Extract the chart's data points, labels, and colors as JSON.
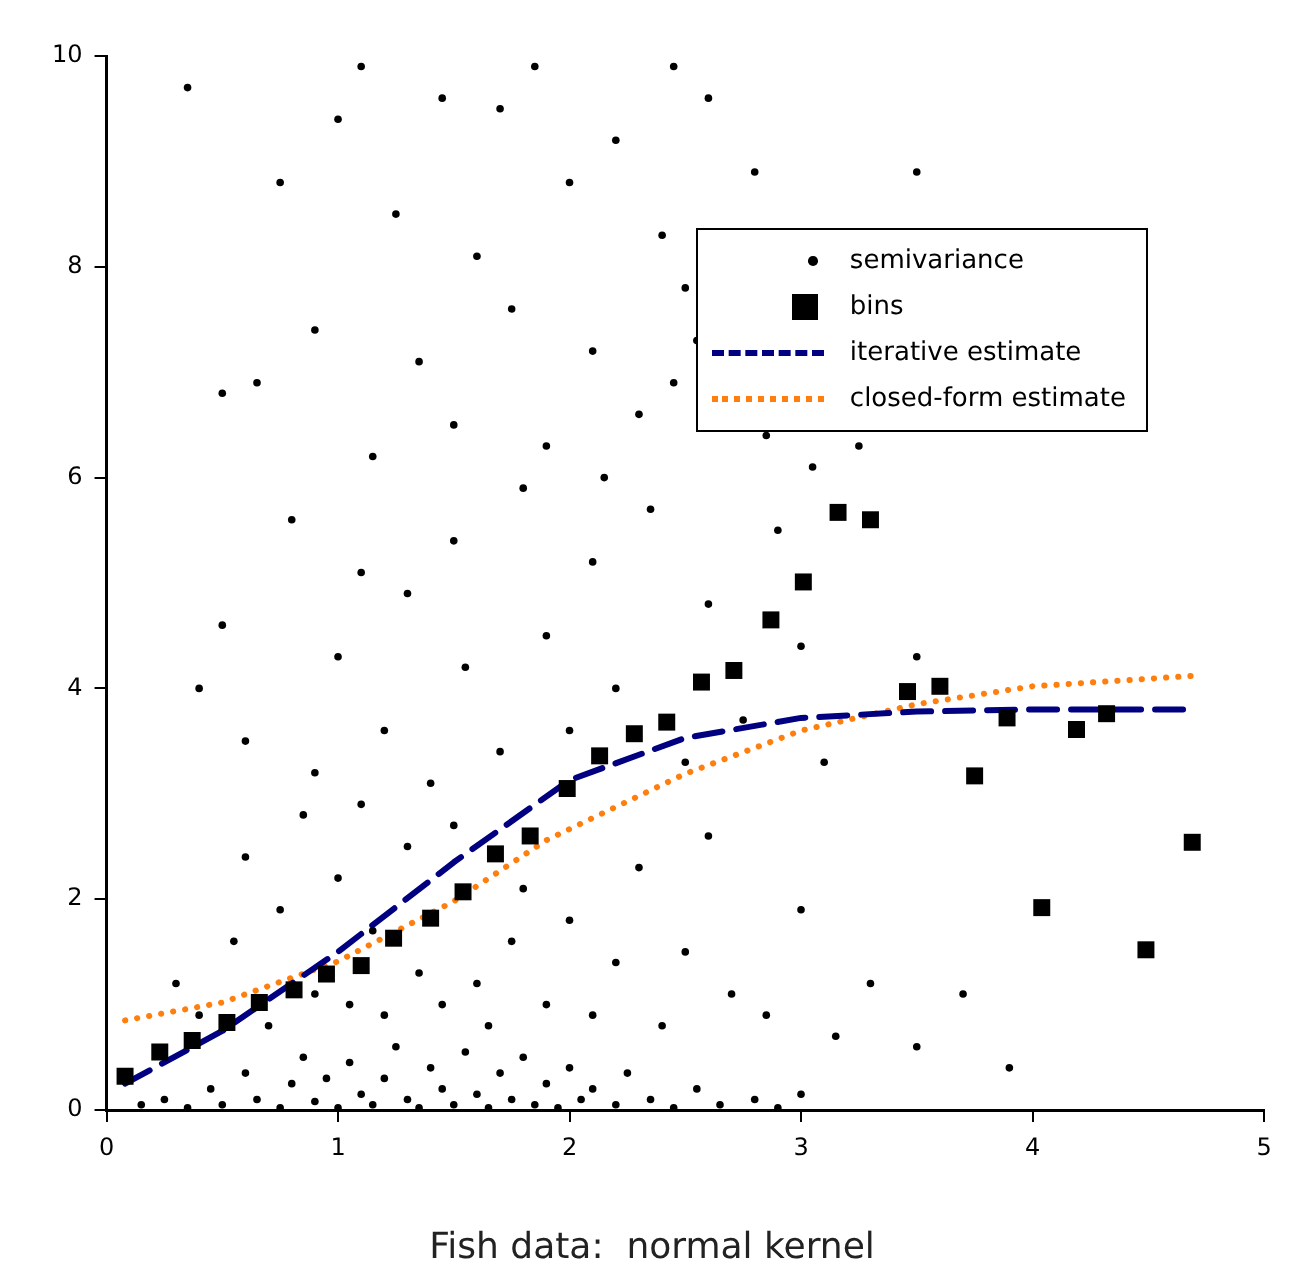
{
  "chart_data": {
    "type": "scatter",
    "title": "Fish data:  normal kernel",
    "xlim": [
      0,
      5
    ],
    "xticks": [
      0,
      1,
      2,
      3,
      4,
      5
    ],
    "ylim": [
      0,
      10
    ],
    "yticks": [
      0,
      2,
      4,
      6,
      8,
      10
    ],
    "grid": false,
    "legend": "top right",
    "series": [
      {
        "name": "semivariance",
        "type": "scatter",
        "marker": "circle",
        "color": "#000000",
        "x": [
          0.15,
          0.25,
          0.35,
          0.45,
          0.5,
          0.6,
          0.65,
          0.75,
          0.8,
          0.85,
          0.9,
          0.95,
          1.0,
          1.05,
          1.1,
          1.15,
          1.2,
          1.25,
          1.3,
          1.35,
          1.4,
          1.45,
          1.5,
          1.55,
          1.6,
          1.65,
          1.7,
          1.75,
          1.8,
          1.85,
          1.9,
          1.95,
          2.0,
          2.05,
          2.1,
          2.2,
          2.25,
          2.35,
          2.45,
          2.55,
          2.65,
          2.8,
          2.9,
          3.0,
          0.3,
          0.4,
          0.55,
          0.6,
          0.7,
          0.75,
          0.85,
          0.9,
          1.0,
          1.05,
          1.1,
          1.15,
          1.2,
          1.3,
          1.35,
          1.45,
          1.5,
          1.6,
          1.65,
          1.75,
          1.8,
          1.9,
          2.0,
          2.1,
          2.2,
          2.3,
          2.4,
          2.5,
          2.6,
          2.7,
          2.85,
          3.0,
          3.15,
          3.3,
          3.5,
          3.7,
          3.9,
          0.4,
          0.5,
          0.6,
          0.8,
          0.9,
          1.0,
          1.1,
          1.2,
          1.3,
          1.4,
          1.5,
          1.55,
          1.7,
          1.8,
          1.9,
          2.0,
          2.1,
          2.2,
          2.35,
          2.5,
          2.6,
          2.75,
          2.9,
          3.0,
          3.1,
          3.25,
          3.5,
          2.85,
          0.35,
          0.5,
          0.65,
          0.75,
          0.9,
          1.0,
          1.1,
          1.15,
          1.25,
          1.35,
          1.45,
          1.5,
          1.6,
          1.7,
          1.75,
          1.85,
          1.9,
          2.0,
          2.1,
          2.2,
          2.3,
          2.4,
          2.5,
          2.6,
          2.45,
          2.8,
          2.55,
          3.5,
          3.05,
          2.15,
          2.45
        ],
        "values": [
          0.05,
          0.1,
          0.02,
          0.2,
          0.05,
          0.35,
          0.1,
          0.02,
          0.25,
          0.5,
          0.08,
          0.3,
          0.02,
          0.45,
          0.15,
          0.05,
          0.3,
          0.6,
          0.1,
          0.02,
          0.4,
          0.2,
          0.05,
          0.55,
          0.15,
          0.02,
          0.35,
          0.1,
          0.5,
          0.05,
          0.25,
          0.02,
          0.4,
          0.1,
          0.2,
          0.05,
          0.35,
          0.1,
          0.02,
          0.2,
          0.05,
          0.1,
          0.02,
          0.15,
          1.2,
          0.9,
          1.6,
          2.4,
          0.8,
          1.9,
          2.8,
          1.1,
          2.2,
          1.0,
          2.9,
          1.7,
          0.9,
          2.5,
          1.3,
          1.0,
          2.7,
          1.2,
          0.8,
          1.6,
          2.1,
          1.0,
          1.8,
          0.9,
          1.4,
          2.3,
          0.8,
          1.5,
          2.6,
          1.1,
          0.9,
          1.9,
          0.7,
          1.2,
          0.6,
          1.1,
          0.4,
          4.0,
          4.6,
          3.5,
          5.6,
          3.2,
          4.3,
          5.1,
          3.6,
          4.9,
          3.1,
          5.4,
          4.2,
          3.4,
          5.9,
          4.5,
          3.6,
          5.2,
          4.0,
          5.7,
          3.3,
          4.8,
          3.7,
          5.5,
          4.4,
          3.3,
          6.3,
          4.3,
          6.4,
          9.7,
          6.8,
          6.9,
          8.8,
          7.4,
          9.4,
          9.9,
          6.2,
          8.5,
          7.1,
          9.6,
          6.5,
          8.1,
          9.5,
          7.6,
          9.9,
          6.3,
          8.8,
          7.2,
          9.2,
          6.6,
          8.3,
          7.8,
          9.6,
          6.9,
          8.9,
          7.3,
          8.9,
          6.1,
          6.0,
          9.9
        ]
      },
      {
        "name": "bins",
        "type": "scatter",
        "marker": "square",
        "color": "#000000",
        "x": [
          0.08,
          0.23,
          0.37,
          0.52,
          0.66,
          0.81,
          0.95,
          1.1,
          1.24,
          1.4,
          1.54,
          1.68,
          1.83,
          1.99,
          2.13,
          2.28,
          2.42,
          2.57,
          2.71,
          2.87,
          3.01,
          3.16,
          3.3,
          3.46,
          3.6,
          3.75,
          3.89,
          4.04,
          4.19,
          4.32,
          4.49,
          4.69
        ],
        "values": [
          0.32,
          0.55,
          0.66,
          0.83,
          1.02,
          1.14,
          1.29,
          1.37,
          1.63,
          1.82,
          2.07,
          2.43,
          2.6,
          3.05,
          3.36,
          3.57,
          3.68,
          4.06,
          4.17,
          4.65,
          5.01,
          5.67,
          5.6,
          3.97,
          4.02,
          3.17,
          3.72,
          1.92,
          3.61,
          3.76,
          1.52,
          2.54
        ]
      },
      {
        "name": "iterative estimate",
        "type": "line",
        "marker": "none",
        "line_style": "dashed",
        "color": "#000080",
        "x": [
          0.08,
          0.5,
          1.0,
          1.5,
          2.0,
          2.5,
          3.0,
          3.5,
          4.0,
          4.7
        ],
        "values": [
          0.25,
          0.75,
          1.5,
          2.35,
          3.13,
          3.53,
          3.72,
          3.78,
          3.8,
          3.8
        ]
      },
      {
        "name": "closed-form estimate",
        "type": "line",
        "marker": "none",
        "line_style": "dotted",
        "color": "#ff7f0e",
        "x": [
          0.08,
          0.5,
          1.0,
          1.5,
          1.9,
          2.5,
          3.0,
          3.5,
          4.0,
          4.7
        ],
        "values": [
          0.85,
          1.02,
          1.41,
          1.98,
          2.56,
          3.19,
          3.6,
          3.85,
          4.02,
          4.12
        ]
      }
    ]
  }
}
